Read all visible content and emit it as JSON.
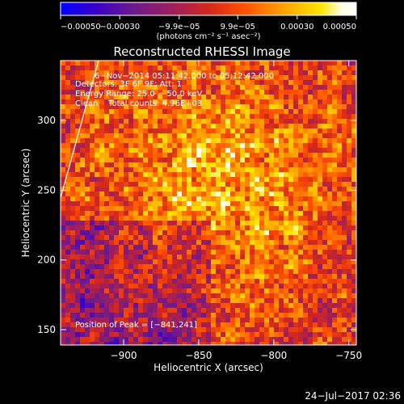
{
  "chart_data": {
    "type": "heatmap",
    "title": "Reconstructed RHESSI Image",
    "xlabel": "Heliocentric X (arcsec)",
    "ylabel": "Heliocentric Y (arcsec)",
    "xlim": [
      -942,
      -745
    ],
    "ylim": [
      139,
      343
    ],
    "x_ticks": [
      -900,
      -850,
      -800,
      -750
    ],
    "y_ticks": [
      150,
      200,
      250,
      300
    ],
    "x_tick_labels": [
      "−900",
      "−850",
      "−800",
      "−750"
    ],
    "y_tick_labels": [
      "150",
      "200",
      "250",
      "300"
    ],
    "colorbar": {
      "min": -0.0005,
      "max": 0.0005,
      "tick_labels": [
        "−0.00050",
        "−0.00030",
        "−9.9e−05",
        "9.9e−05",
        "0.00030",
        "0.00050"
      ],
      "tick_values": [
        -0.0005,
        -0.0003,
        -9.9e-05,
        9.9e-05,
        0.0003,
        0.0005
      ],
      "units_label": "(photons cm⁻² s⁻¹ asec⁻²)",
      "colors": [
        "#0000ff",
        "#3a00c8",
        "#6e1a8c",
        "#a01e5a",
        "#d2281e",
        "#ff5000",
        "#ffa000",
        "#ffe600",
        "#ffffe0",
        "#ffffff"
      ]
    },
    "annotations": {
      "date_line": "6−Nov−2014 05:11:42.000 to 05:12:42.000",
      "detectors_line": "Detectors: 3F 6F 9F; Att: 1",
      "energy_line": "Energy Range: 25.0 − 50.0 keV",
      "clean_line": "Clean    Total counts: 4.96E+03",
      "peak_line": "Position of Peak = [−841,241]"
    }
  },
  "footer": {
    "timestamp": "24−Jul−2017 02:36"
  }
}
